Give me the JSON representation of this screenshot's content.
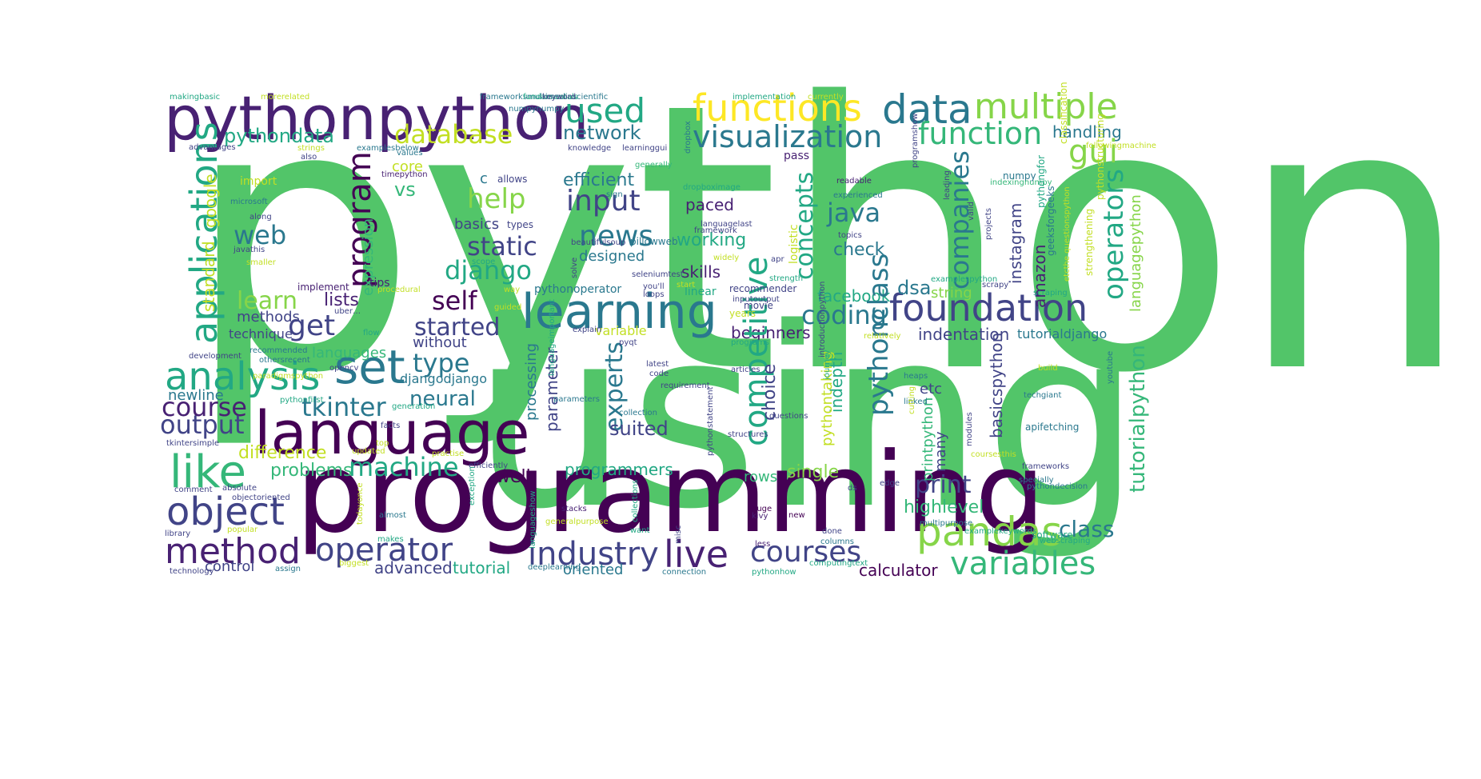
{
  "words": [
    {
      "text": "python",
      "color": "#52c569"
    },
    {
      "text": "using",
      "color": "#52c569"
    },
    {
      "text": "programming",
      "color": "#440154"
    },
    {
      "text": "pythonpython",
      "color": "#482173"
    },
    {
      "text": "functions",
      "color": "#fde725"
    },
    {
      "text": "data",
      "color": "#2a788e"
    },
    {
      "text": "multiple",
      "color": "#86d549"
    },
    {
      "text": "used",
      "color": "#22a884"
    },
    {
      "text": "visualization",
      "color": "#2a788e"
    },
    {
      "text": "function",
      "color": "#35b779"
    },
    {
      "text": "database",
      "color": "#c2df23"
    },
    {
      "text": "pythondata",
      "color": "#22a884"
    },
    {
      "text": "network",
      "color": "#2a788e"
    },
    {
      "text": "handling",
      "color": "#2a788e"
    },
    {
      "text": "gui",
      "color": "#86d549"
    },
    {
      "text": "applications",
      "color": "#22a884"
    },
    {
      "text": "core",
      "color": "#c2df23"
    },
    {
      "text": "vs",
      "color": "#35b779"
    },
    {
      "text": "help",
      "color": "#86d549"
    },
    {
      "text": "efficient",
      "color": "#2a788e"
    },
    {
      "text": "input",
      "color": "#414487"
    },
    {
      "text": "java",
      "color": "#2a788e"
    },
    {
      "text": "paced",
      "color": "#482173"
    },
    {
      "text": "web",
      "color": "#2a788e"
    },
    {
      "text": "program",
      "color": "#440154"
    },
    {
      "text": "news",
      "color": "#2a788e"
    },
    {
      "text": "static",
      "color": "#414487"
    },
    {
      "text": "django",
      "color": "#22a884"
    },
    {
      "text": "concepts",
      "color": "#22a884"
    },
    {
      "text": "working",
      "color": "#22a884"
    },
    {
      "text": "check",
      "color": "#2a788e"
    },
    {
      "text": "companies",
      "color": "#2a788e"
    },
    {
      "text": "operators",
      "color": "#22a884"
    },
    {
      "text": "learn",
      "color": "#86d549"
    },
    {
      "text": "self",
      "color": "#440154"
    },
    {
      "text": "learning",
      "color": "#2a788e"
    },
    {
      "text": "skills",
      "color": "#482173"
    },
    {
      "text": "foundation",
      "color": "#414487"
    },
    {
      "text": "dsa",
      "color": "#2a788e"
    },
    {
      "text": "facebook",
      "color": "#22a884"
    },
    {
      "text": "get",
      "color": "#414487"
    },
    {
      "text": "lists",
      "color": "#482173"
    },
    {
      "text": "started",
      "color": "#414487"
    },
    {
      "text": "coding",
      "color": "#2a788e"
    },
    {
      "text": "string",
      "color": "#86d549"
    },
    {
      "text": "methods",
      "color": "#414487"
    },
    {
      "text": "beginners",
      "color": "#482173"
    },
    {
      "text": "indentation",
      "color": "#414487"
    },
    {
      "text": "analysis",
      "color": "#22a884"
    },
    {
      "text": "set",
      "color": "#2a788e"
    },
    {
      "text": "type",
      "color": "#2a788e"
    },
    {
      "text": "competitive",
      "color": "#22a884"
    },
    {
      "text": "pythonclass",
      "color": "#2a788e"
    },
    {
      "text": "course",
      "color": "#482173"
    },
    {
      "text": "tkinter",
      "color": "#2a788e"
    },
    {
      "text": "neural",
      "color": "#2a788e"
    },
    {
      "text": "experts",
      "color": "#2a788e"
    },
    {
      "text": "output",
      "color": "#414487"
    },
    {
      "text": "language",
      "color": "#440154"
    },
    {
      "text": "suited",
      "color": "#414487"
    },
    {
      "text": "like",
      "color": "#35b779"
    },
    {
      "text": "machine",
      "color": "#22a884"
    },
    {
      "text": "object",
      "color": "#414487"
    },
    {
      "text": "print",
      "color": "#414487"
    },
    {
      "text": "pandas",
      "color": "#86d549"
    },
    {
      "text": "highlevel",
      "color": "#35b779"
    },
    {
      "text": "class",
      "color": "#2a788e"
    },
    {
      "text": "method",
      "color": "#482173"
    },
    {
      "text": "operator",
      "color": "#414487"
    },
    {
      "text": "industry",
      "color": "#414487"
    },
    {
      "text": "live",
      "color": "#482173"
    },
    {
      "text": "courses",
      "color": "#414487"
    },
    {
      "text": "variables",
      "color": "#35b779"
    },
    {
      "text": "calculator",
      "color": "#440154"
    },
    {
      "text": "advanced",
      "color": "#414487"
    },
    {
      "text": "tutorial",
      "color": "#22a884"
    },
    {
      "text": "oriented",
      "color": "#2a788e"
    },
    {
      "text": "control",
      "color": "#414487"
    },
    {
      "text": "programmers",
      "color": "#22a884"
    },
    {
      "text": "well",
      "color": "#440154"
    },
    {
      "text": "problems",
      "color": "#35b779"
    },
    {
      "text": "difference",
      "color": "#c2df23"
    },
    {
      "text": "newline",
      "color": "#2a788e"
    },
    {
      "text": "languages",
      "color": "#35b779"
    },
    {
      "text": "without",
      "color": "#414487"
    },
    {
      "text": "google",
      "color": "#c2df23"
    },
    {
      "text": "standard",
      "color": "#c2df23"
    },
    {
      "text": "expression",
      "color": "#35b779"
    },
    {
      "text": "etc",
      "color": "#414487"
    },
    {
      "text": "many",
      "color": "#414487"
    },
    {
      "text": "instagram",
      "color": "#414487"
    },
    {
      "text": "amazon",
      "color": "#482173"
    },
    {
      "text": "choice",
      "color": "#414487"
    },
    {
      "text": "indepth",
      "color": "#22a884"
    },
    {
      "text": "pythontaking",
      "color": "#c2df23"
    },
    {
      "text": "tutorialpython",
      "color": "#35b779"
    },
    {
      "text": "languagepython",
      "color": "#86d549"
    },
    {
      "text": "basicspython",
      "color": "#414487"
    },
    {
      "text": "printpython",
      "color": "#35b779"
    },
    {
      "text": "parameter",
      "color": "#414487"
    },
    {
      "text": "processing",
      "color": "#2a788e"
    },
    {
      "text": "basics",
      "color": "#414487"
    },
    {
      "text": "designed",
      "color": "#2a788e"
    },
    {
      "text": "technique",
      "color": "#414487"
    },
    {
      "text": "variable",
      "color": "#c2df23"
    },
    {
      "text": "single",
      "color": "#86d549"
    },
    {
      "text": "rows",
      "color": "#35b779"
    },
    {
      "text": "tutorialdjango",
      "color": "#2a788e"
    },
    {
      "text": "djangodjango",
      "color": "#2a788e"
    },
    {
      "text": "pass",
      "color": "#482173"
    },
    {
      "text": "logistic",
      "color": "#c2df23"
    },
    {
      "text": "numpy",
      "color": "#2a788e"
    },
    {
      "text": "pythonoperator",
      "color": "#2a788e"
    },
    {
      "text": "tips",
      "color": "#482173"
    },
    {
      "text": "implement",
      "color": "#482173"
    },
    {
      "text": "import",
      "color": "#c2df23"
    },
    {
      "text": "timepython",
      "color": "#482173"
    },
    {
      "text": "allows",
      "color": "#414487"
    },
    {
      "text": "c",
      "color": "#2a788e"
    },
    {
      "text": "types",
      "color": "#414487"
    },
    {
      "text": "pillowweb",
      "color": "#2a788e"
    },
    {
      "text": "framework",
      "color": "#414487"
    },
    {
      "text": "languagelast",
      "color": "#414487"
    },
    {
      "text": "dropboximage",
      "color": "#22a884"
    },
    {
      "text": "readable",
      "color": "#482173"
    },
    {
      "text": "experienced",
      "color": "#2a788e"
    },
    {
      "text": "topics",
      "color": "#414487"
    },
    {
      "text": "recommender",
      "color": "#414487"
    },
    {
      "text": "movie",
      "color": "#414487"
    },
    {
      "text": "years",
      "color": "#c2df23"
    },
    {
      "text": "linear",
      "color": "#22a884"
    },
    {
      "text": "loops",
      "color": "#414487"
    },
    {
      "text": "strength",
      "color": "#22a884"
    },
    {
      "text": "apr",
      "color": "#414487"
    },
    {
      "text": "relatively",
      "color": "#c2df23"
    },
    {
      "text": "build",
      "color": "#c2df23"
    },
    {
      "text": "youtube",
      "color": "#2a788e"
    },
    {
      "text": "techgiant",
      "color": "#2a788e"
    },
    {
      "text": "apifetching",
      "color": "#2a788e"
    },
    {
      "text": "frameworks",
      "color": "#414487"
    },
    {
      "text": "specially",
      "color": "#2a788e"
    },
    {
      "text": "pythondecision",
      "color": "#2a788e"
    },
    {
      "text": "software",
      "color": "#22a884"
    },
    {
      "text": "multipurpose",
      "color": "#2a788e"
    },
    {
      "text": "webscraping",
      "color": "#22a884"
    },
    {
      "text": "coursesthis",
      "color": "#c2df23"
    },
    {
      "text": "heaps",
      "color": "#2a788e"
    },
    {
      "text": "linked",
      "color": "#2a788e"
    },
    {
      "text": "cutting",
      "color": "#c2df23"
    },
    {
      "text": "edge",
      "color": "#414487"
    },
    {
      "text": "ds",
      "color": "#414487"
    },
    {
      "text": "done",
      "color": "#414487"
    },
    {
      "text": "new",
      "color": "#440154"
    },
    {
      "text": "huge",
      "color": "#440154"
    },
    {
      "text": "kivy",
      "color": "#482173"
    },
    {
      "text": "less",
      "color": "#482173"
    },
    {
      "text": "columns",
      "color": "#2a788e"
    },
    {
      "text": "computingtext",
      "color": "#22a884"
    },
    {
      "text": "pythonhow",
      "color": "#22a884"
    },
    {
      "text": "connection",
      "color": "#2a788e"
    },
    {
      "text": "generalpurpose",
      "color": "#c2df23"
    },
    {
      "text": "stacks",
      "color": "#482173"
    },
    {
      "text": "want",
      "color": "#22a884"
    },
    {
      "text": "deeplearning",
      "color": "#2a788e"
    },
    {
      "text": "biggest",
      "color": "#c2df23"
    },
    {
      "text": "makes",
      "color": "#22a884"
    },
    {
      "text": "almost",
      "color": "#2a788e"
    },
    {
      "text": "assign",
      "color": "#2a788e"
    },
    {
      "text": "technology",
      "color": "#414487"
    },
    {
      "text": "library",
      "color": "#414487"
    },
    {
      "text": "popular",
      "color": "#c2df23"
    },
    {
      "text": "objectoriented",
      "color": "#414487"
    },
    {
      "text": "comment",
      "color": "#414487"
    },
    {
      "text": "absolute",
      "color": "#414487"
    },
    {
      "text": "tkintersimple",
      "color": "#414487"
    },
    {
      "text": "updated",
      "color": "#c2df23"
    },
    {
      "text": "practise",
      "color": "#c2df23"
    },
    {
      "text": "efficiently",
      "color": "#414487"
    },
    {
      "text": "top",
      "color": "#c2df23"
    },
    {
      "text": "facts",
      "color": "#414487"
    },
    {
      "text": "generation",
      "color": "#22a884"
    },
    {
      "text": "pythonfirst",
      "color": "#22a884"
    },
    {
      "text": "paradigmspython",
      "color": "#c2df23"
    },
    {
      "text": "opencv",
      "color": "#414487"
    },
    {
      "text": "othersrecent",
      "color": "#2a788e"
    },
    {
      "text": "recommended",
      "color": "#2a788e"
    },
    {
      "text": "development",
      "color": "#414487"
    },
    {
      "text": "latest",
      "color": "#414487"
    },
    {
      "text": "code",
      "color": "#414487"
    },
    {
      "text": "requirement",
      "color": "#414487"
    },
    {
      "text": "articles",
      "color": "#414487"
    },
    {
      "text": "collection",
      "color": "#2a788e"
    },
    {
      "text": "structures",
      "color": "#414487"
    },
    {
      "text": "questions",
      "color": "#414487"
    },
    {
      "text": "pyqt",
      "color": "#414487"
    },
    {
      "text": "explain",
      "color": "#414487"
    },
    {
      "text": "programs",
      "color": "#22a884"
    },
    {
      "text": "way",
      "color": "#c2df23"
    },
    {
      "text": "guided",
      "color": "#c2df23"
    },
    {
      "text": "uber…",
      "color": "#414487"
    },
    {
      "text": "procedural",
      "color": "#c2df23"
    },
    {
      "text": "flow",
      "color": "#22a884"
    },
    {
      "text": "seleniumtest",
      "color": "#414487"
    },
    {
      "text": "you'll",
      "color": "#414487"
    },
    {
      "text": "start",
      "color": "#c2df23"
    },
    {
      "text": "inputoutput",
      "color": "#414487"
    },
    {
      "text": "scope",
      "color": "#22a884"
    },
    {
      "text": "beautifulsoup",
      "color": "#414487"
    },
    {
      "text": "solve",
      "color": "#414487"
    },
    {
      "text": "sign",
      "color": "#2a788e"
    },
    {
      "text": "widely",
      "color": "#c2df23"
    },
    {
      "text": "generally",
      "color": "#35b779"
    },
    {
      "text": "knowledge",
      "color": "#414487"
    },
    {
      "text": "learninggui",
      "color": "#414487"
    },
    {
      "text": "values",
      "color": "#2a788e"
    },
    {
      "text": "numpynumpy",
      "color": "#2a788e"
    },
    {
      "text": "microsoft",
      "color": "#2a788e"
    },
    {
      "text": "along",
      "color": "#414487"
    },
    {
      "text": "javathis",
      "color": "#414487"
    },
    {
      "text": "smaller",
      "color": "#c2df23"
    },
    {
      "text": "also",
      "color": "#414487"
    },
    {
      "text": "advantages",
      "color": "#414487"
    },
    {
      "text": "strings",
      "color": "#c2df23"
    },
    {
      "text": "examplesbelow",
      "color": "#2a788e"
    },
    {
      "text": "makingbasic",
      "color": "#22a884"
    },
    {
      "text": "morerelated",
      "color": "#c2df23"
    },
    {
      "text": "frameworksmultimediascientific",
      "color": "#2a788e"
    },
    {
      "text": "fundamentals",
      "color": "#22a884"
    },
    {
      "text": "keyword",
      "color": "#414487"
    },
    {
      "text": "implementation",
      "color": "#22a884"
    },
    {
      "text": "currently",
      "color": "#c2df23"
    },
    {
      "text": "followingmachine",
      "color": "#c2df23"
    },
    {
      "text": "dropbox",
      "color": "#2a788e"
    },
    {
      "text": "programshow",
      "color": "#414487"
    },
    {
      "text": "leading",
      "color": "#414487"
    },
    {
      "text": "pythonstructuring",
      "color": "#c2df23"
    },
    {
      "text": "indexingnumpy",
      "color": "#35b779"
    },
    {
      "text": "pythongfor",
      "color": "#22a884"
    },
    {
      "text": "geeksforgeeks",
      "color": "#2a788e"
    },
    {
      "text": "classification",
      "color": "#c2df23"
    },
    {
      "text": "valid",
      "color": "#414487"
    },
    {
      "text": "scrapy",
      "color": "#414487"
    },
    {
      "text": "scraping",
      "color": "#22a884"
    },
    {
      "text": "etcthe questionspython",
      "color": "#c2df23"
    },
    {
      "text": "strengthening",
      "color": "#c2df23"
    },
    {
      "text": "projects",
      "color": "#414487"
    },
    {
      "text": "examplespython",
      "color": "#22a884"
    },
    {
      "text": "journey",
      "color": "#22a884"
    },
    {
      "text": "introductionpython",
      "color": "#414487"
    },
    {
      "text": "modules",
      "color": "#414487"
    },
    {
      "text": "examplekeywords",
      "color": "#22a884"
    },
    {
      "text": "pythonstatement",
      "color": "#414487"
    },
    {
      "text": "misc",
      "color": "#414487"
    },
    {
      "text": "collections",
      "color": "#22a884"
    },
    {
      "text": "languageshow",
      "color": "#22a884"
    },
    {
      "text": "exception",
      "color": "#22a884"
    },
    {
      "text": "todayonce",
      "color": "#c2df23"
    },
    {
      "text": "parameters",
      "color": "#2a788e"
    },
    {
      "text": "languageimportant",
      "color": "#22a884"
    }
  ]
}
